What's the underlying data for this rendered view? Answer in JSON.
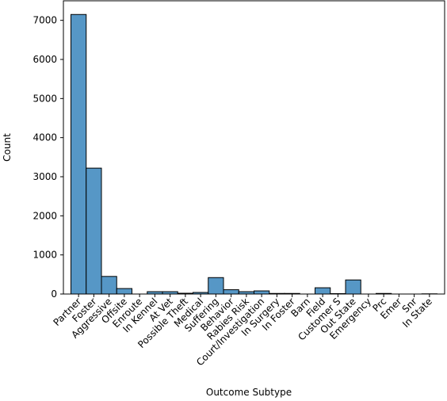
{
  "chart_data": {
    "type": "bar",
    "xlabel": "Outcome Subtype",
    "ylabel": "Count",
    "ylim": [
      0,
      7500
    ],
    "yticks": [
      0,
      1000,
      2000,
      3000,
      4000,
      5000,
      6000,
      7000
    ],
    "grid": false,
    "legend": "none",
    "bar_color": "#5697c6",
    "edge_color": "#000000",
    "categories": [
      "Partner",
      "Foster",
      "Aggressive",
      "Offsite",
      "Enroute",
      "In Kennel",
      "At Vet",
      "Possible Theft",
      "Medical",
      "Suffering",
      "Behavior",
      "Rabies Risk",
      "Court/Investigation",
      "In Surgery",
      "In Foster",
      "Barn",
      "Field",
      "Customer S",
      "Out State",
      "Emergency",
      "Prc",
      "Emer",
      "Snr",
      "In State"
    ],
    "values": [
      7150,
      3220,
      450,
      140,
      0,
      60,
      60,
      20,
      40,
      420,
      110,
      60,
      80,
      15,
      15,
      0,
      160,
      10,
      360,
      0,
      15,
      0,
      0,
      5
    ]
  }
}
